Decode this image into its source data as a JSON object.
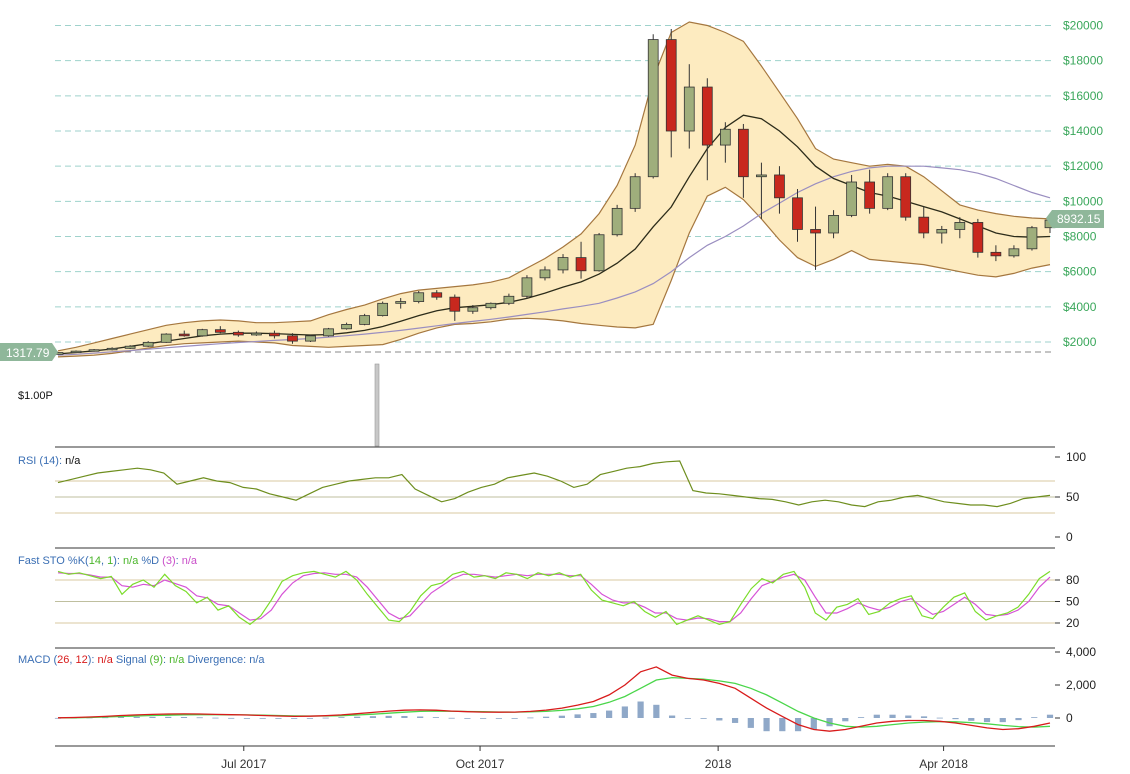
{
  "chart_data": {
    "type": "candlestick",
    "price_axis": {
      "ticks": [
        "$2000",
        "$4000",
        "$6000",
        "$8000",
        "$10000",
        "$12000",
        "$14000",
        "$16000",
        "$18000",
        "$20000"
      ],
      "tick_values": [
        2000,
        4000,
        6000,
        8000,
        10000,
        12000,
        14000,
        16000,
        18000,
        20000
      ],
      "ylim": [
        1100,
        20800
      ],
      "color": "#3aa75b"
    },
    "x_axis": {
      "ticks": [
        "Jul 2017",
        "Oct 2017",
        "2018",
        "Apr 2018"
      ],
      "tick_week_index": [
        10.3,
        23.4,
        36.6,
        49.1
      ]
    },
    "first_price_label": "1317.79",
    "last_price_label": "8932.15",
    "volume_label": "$1.00P",
    "colors": {
      "up": "#9fae7c",
      "down": "#c8281e",
      "bollinger_fill": "#fdebc0",
      "bollinger_band": "#a5773f",
      "sma_fast": "#2c2c1a",
      "sma_slow": "#9a8ec0",
      "price_grid": "#9fd2cc",
      "rsi_line": "#6e8e1e",
      "sto_k": "#7bdc2a",
      "sto_d": "#d653d6",
      "macd_line": "#d81b1b",
      "signal_line": "#4ad64a",
      "divergence": "#8fa8c8"
    },
    "candles_ohlc": [
      [
        1300,
        1420,
        1280,
        1400
      ],
      [
        1400,
        1520,
        1380,
        1480
      ],
      [
        1480,
        1600,
        1450,
        1560
      ],
      [
        1560,
        1700,
        1520,
        1640
      ],
      [
        1640,
        1820,
        1600,
        1760
      ],
      [
        1760,
        2050,
        1720,
        1980
      ],
      [
        1980,
        2500,
        1950,
        2450
      ],
      [
        2450,
        2650,
        2300,
        2350
      ],
      [
        2350,
        2750,
        2300,
        2700
      ],
      [
        2700,
        2900,
        2500,
        2550
      ],
      [
        2550,
        2650,
        2300,
        2400
      ],
      [
        2400,
        2600,
        2350,
        2500
      ],
      [
        2500,
        2650,
        2200,
        2350
      ],
      [
        2350,
        2500,
        1900,
        2050
      ],
      [
        2050,
        2400,
        2000,
        2350
      ],
      [
        2350,
        2800,
        2300,
        2750
      ],
      [
        2750,
        3100,
        2700,
        3000
      ],
      [
        3000,
        3600,
        2950,
        3500
      ],
      [
        3500,
        4300,
        3450,
        4200
      ],
      [
        4200,
        4500,
        3900,
        4300
      ],
      [
        4300,
        4900,
        4200,
        4800
      ],
      [
        4800,
        4950,
        4400,
        4550
      ],
      [
        4550,
        4700,
        3200,
        3750
      ],
      [
        3750,
        4100,
        3600,
        3950
      ],
      [
        3950,
        4250,
        3850,
        4200
      ],
      [
        4200,
        4750,
        4100,
        4600
      ],
      [
        4600,
        5800,
        4500,
        5650
      ],
      [
        5650,
        6300,
        5500,
        6100
      ],
      [
        6100,
        7000,
        5900,
        6800
      ],
      [
        6800,
        7700,
        5600,
        6050
      ],
      [
        6050,
        8200,
        6000,
        8100
      ],
      [
        8100,
        9800,
        8000,
        9600
      ],
      [
        9600,
        11600,
        9400,
        11400
      ],
      [
        11400,
        19500,
        11300,
        19200
      ],
      [
        19200,
        19800,
        12500,
        14000
      ],
      [
        14000,
        17800,
        13000,
        16500
      ],
      [
        16500,
        17000,
        11200,
        13200
      ],
      [
        13200,
        14500,
        12200,
        14100
      ],
      [
        14100,
        14400,
        10200,
        11400
      ],
      [
        11400,
        12200,
        9000,
        11500
      ],
      [
        11500,
        12000,
        9300,
        10200
      ],
      [
        10200,
        10700,
        7700,
        8400
      ],
      [
        8400,
        9700,
        6100,
        8200
      ],
      [
        8200,
        9500,
        7900,
        9200
      ],
      [
        9200,
        11500,
        9100,
        11100
      ],
      [
        11100,
        11800,
        9300,
        9600
      ],
      [
        9600,
        11600,
        9500,
        11400
      ],
      [
        11400,
        11600,
        8900,
        9100
      ],
      [
        9100,
        9700,
        7900,
        8200
      ],
      [
        8200,
        8600,
        7600,
        8400
      ],
      [
        8400,
        9100,
        7900,
        8800
      ],
      [
        8800,
        9000,
        6800,
        7100
      ],
      [
        7100,
        7500,
        6600,
        6900
      ],
      [
        6900,
        7500,
        6800,
        7300
      ],
      [
        7300,
        8600,
        7200,
        8500
      ],
      [
        8500,
        9200,
        8200,
        8932
      ]
    ],
    "bollinger_upper": [
      1500,
      1700,
      1950,
      2200,
      2450,
      2700,
      2950,
      3100,
      3200,
      3250,
      3200,
      3100,
      3100,
      3150,
      3200,
      3550,
      3850,
      4100,
      4450,
      4750,
      4950,
      5050,
      5150,
      5250,
      5400,
      5650,
      6200,
      6750,
      7400,
      8150,
      9300,
      10900,
      13200,
      17000,
      19600,
      20200,
      20000,
      19600,
      19100,
      17700,
      16200,
      14700,
      13000,
      12400,
      12200,
      12000,
      12100,
      12000,
      11400,
      10600,
      9800,
      9500,
      9300,
      9150,
      9050,
      9000
    ],
    "bollinger_lower": [
      1150,
      1200,
      1250,
      1350,
      1500,
      1650,
      1800,
      1900,
      1950,
      2000,
      2050,
      2000,
      1950,
      1800,
      1750,
      1700,
      1750,
      1800,
      1850,
      2150,
      2500,
      2800,
      3000,
      3050,
      3150,
      3300,
      3350,
      3300,
      3200,
      3050,
      2950,
      2850,
      2800,
      3000,
      5500,
      8200,
      10300,
      10800,
      10100,
      9000,
      7800,
      6800,
      6300,
      6700,
      7200,
      6700,
      6600,
      6500,
      6400,
      6200,
      6000,
      5800,
      5700,
      5900,
      6200,
      6400
    ],
    "sma_fast": [
      1320,
      1400,
      1500,
      1600,
      1750,
      1900,
      2050,
      2200,
      2350,
      2450,
      2500,
      2500,
      2480,
      2430,
      2400,
      2420,
      2520,
      2660,
      2880,
      3180,
      3500,
      3780,
      3950,
      4030,
      4120,
      4260,
      4480,
      4780,
      5120,
      5420,
      5860,
      6480,
      7290,
      8550,
      9680,
      11400,
      13000,
      14200,
      14900,
      14700,
      14000,
      13100,
      12000,
      11300,
      10900,
      10500,
      10300,
      10000,
      9700,
      9400,
      9000,
      8600,
      8200,
      8000,
      7960,
      8000
    ],
    "sma_slow": [
      1250,
      1300,
      1370,
      1440,
      1510,
      1590,
      1670,
      1750,
      1830,
      1900,
      1970,
      2030,
      2090,
      2140,
      2200,
      2280,
      2360,
      2450,
      2550,
      2660,
      2790,
      2920,
      3050,
      3170,
      3290,
      3420,
      3570,
      3720,
      3880,
      4030,
      4200,
      4500,
      4850,
      5320,
      6000,
      6800,
      7500,
      8000,
      8600,
      9300,
      9900,
      10500,
      11000,
      11400,
      11700,
      11900,
      12000,
      12000,
      12000,
      11900,
      11800,
      11600,
      11300,
      10900,
      10500,
      10200
    ],
    "rsi_values": [
      68,
      72,
      76,
      80,
      82,
      84,
      86,
      84,
      80,
      66,
      70,
      74,
      70,
      68,
      62,
      60,
      54,
      50,
      46,
      54,
      62,
      66,
      70,
      72,
      74,
      74,
      78,
      60,
      52,
      44,
      48,
      56,
      62,
      66,
      74,
      77,
      80,
      76,
      70,
      62,
      66,
      78,
      82,
      86,
      88,
      92,
      94,
      95,
      58,
      55,
      54,
      52,
      50,
      48,
      47,
      44,
      40,
      44,
      46,
      44,
      40,
      38,
      44,
      46,
      50,
      52,
      48,
      44,
      42,
      40,
      40,
      38,
      42,
      48,
      50,
      52
    ],
    "rsi_axis": {
      "ticks": [
        "100",
        "50",
        "0"
      ],
      "tick_values": [
        100,
        50,
        0
      ],
      "levels": [
        70,
        30
      ]
    },
    "sto_k": [
      92,
      88,
      90,
      86,
      82,
      85,
      60,
      74,
      80,
      70,
      88,
      72,
      64,
      48,
      56,
      38,
      44,
      28,
      18,
      30,
      52,
      78,
      86,
      90,
      92,
      88,
      84,
      92,
      80,
      60,
      42,
      24,
      22,
      36,
      58,
      72,
      76,
      88,
      92,
      84,
      86,
      82,
      90,
      88,
      82,
      90,
      86,
      90,
      84,
      88,
      66,
      52,
      48,
      44,
      50,
      36,
      28,
      36,
      18,
      24,
      30,
      24,
      18,
      22,
      46,
      68,
      82,
      76,
      88,
      92,
      70,
      34,
      24,
      42,
      46,
      54,
      32,
      36,
      48,
      54,
      58,
      30,
      26,
      42,
      56,
      62,
      36,
      24,
      30,
      34,
      42,
      60,
      82,
      92
    ],
    "sto_d": [
      90,
      89,
      89,
      87,
      84,
      84,
      72,
      70,
      74,
      72,
      80,
      75,
      70,
      58,
      55,
      46,
      44,
      34,
      24,
      26,
      38,
      60,
      76,
      86,
      89,
      90,
      88,
      88,
      84,
      70,
      52,
      34,
      26,
      30,
      46,
      62,
      72,
      82,
      88,
      88,
      86,
      84,
      86,
      88,
      86,
      88,
      88,
      88,
      86,
      86,
      74,
      60,
      52,
      48,
      48,
      42,
      34,
      34,
      26,
      24,
      27,
      26,
      22,
      22,
      34,
      54,
      72,
      78,
      84,
      88,
      80,
      56,
      34,
      34,
      40,
      48,
      42,
      38,
      42,
      50,
      54,
      42,
      32,
      36,
      46,
      56,
      46,
      32,
      30,
      32,
      38,
      50,
      70,
      84
    ],
    "sto_axis": {
      "ticks": [
        "80",
        "50",
        "20"
      ],
      "tick_values": [
        80,
        50,
        20
      ]
    },
    "macd_line": [
      10,
      30,
      60,
      100,
      150,
      190,
      220,
      240,
      250,
      240,
      220,
      200,
      180,
      150,
      120,
      100,
      110,
      140,
      190,
      260,
      340,
      420,
      470,
      490,
      470,
      420,
      380,
      360,
      350,
      360,
      400,
      480,
      600,
      780,
      1000,
      1400,
      2000,
      2800,
      3100,
      2600,
      2400,
      2300,
      2100,
      1800,
      1200,
      600,
      100,
      -400,
      -700,
      -800,
      -700,
      -500,
      -300,
      -200,
      -150,
      -150,
      -200,
      -300,
      -450,
      -600,
      -700,
      -650,
      -500,
      -300
    ],
    "signal_line": [
      5,
      15,
      30,
      60,
      90,
      120,
      150,
      170,
      190,
      200,
      200,
      195,
      185,
      170,
      150,
      130,
      120,
      120,
      140,
      180,
      230,
      290,
      350,
      400,
      420,
      410,
      395,
      380,
      365,
      360,
      370,
      400,
      460,
      560,
      700,
      950,
      1300,
      1800,
      2300,
      2450,
      2400,
      2350,
      2250,
      2100,
      1800,
      1400,
      900,
      400,
      0,
      -300,
      -500,
      -550,
      -500,
      -400,
      -300,
      -250,
      -220,
      -230,
      -280,
      -350,
      -450,
      -520,
      -550,
      -500
    ],
    "macd_axis": {
      "ticks": [
        "4,000",
        "2,000",
        "0"
      ],
      "tick_values": [
        4000,
        2000,
        0
      ]
    },
    "indicator_legends": {
      "rsi": {
        "name": "RSI",
        "params": "(14)",
        "sep": ":",
        "value": "n/a"
      },
      "sto": {
        "name": "Fast STO %K",
        "params_open": "(",
        "p1": "14",
        "comma": ",",
        "p2": "1",
        "params_close": ")",
        "sep": ":",
        "value_k": "n/a",
        "d_name": "%D",
        "d_params": "(3)",
        "value_d": "n/a"
      },
      "macd": {
        "name": "MACD",
        "params_open": "(",
        "p1": "26",
        "comma": ",",
        "p2": "12",
        "params_close": ")",
        "sep": ":",
        "value": "n/a",
        "signal_name": "Signal",
        "signal_params": "(9)",
        "signal_value": "n/a",
        "div_name": "Divergence",
        "div_value": "n/a"
      }
    }
  }
}
